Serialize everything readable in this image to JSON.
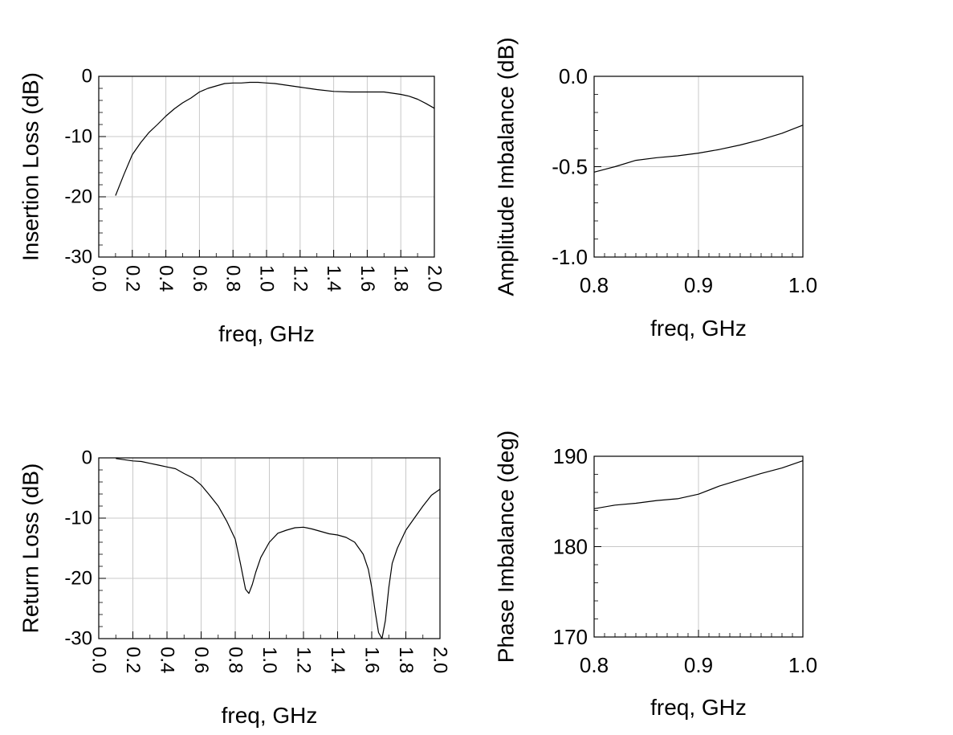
{
  "chart_data": [
    {
      "type": "line",
      "xlabel": "freq, GHz",
      "ylabel": "Insertion Loss (dB)",
      "xlim": [
        0.0,
        2.0
      ],
      "ylim": [
        -30,
        0
      ],
      "xticks": [
        "0.0",
        "0.2",
        "0.4",
        "0.6",
        "0.8",
        "1.0",
        "1.2",
        "1.4",
        "1.6",
        "1.8",
        "2.0"
      ],
      "yticks": [
        "0",
        "-10",
        "-20",
        "-30"
      ],
      "grid": true,
      "series": [
        {
          "x": [
            0.1,
            0.15,
            0.2,
            0.25,
            0.3,
            0.35,
            0.4,
            0.45,
            0.5,
            0.55,
            0.6,
            0.65,
            0.7,
            0.75,
            0.8,
            0.85,
            0.9,
            0.95,
            1.0,
            1.05,
            1.1,
            1.2,
            1.3,
            1.4,
            1.5,
            1.6,
            1.65,
            1.7,
            1.75,
            1.8,
            1.85,
            1.9,
            1.95,
            2.0
          ],
          "y": [
            -19.8,
            -16.3,
            -13.0,
            -11.0,
            -9.3,
            -8.0,
            -6.6,
            -5.4,
            -4.4,
            -3.6,
            -2.6,
            -2.0,
            -1.6,
            -1.2,
            -1.1,
            -1.1,
            -1.0,
            -1.0,
            -1.1,
            -1.2,
            -1.4,
            -1.8,
            -2.2,
            -2.5,
            -2.6,
            -2.6,
            -2.6,
            -2.6,
            -2.8,
            -3.0,
            -3.3,
            -3.8,
            -4.5,
            -5.3
          ]
        }
      ]
    },
    {
      "type": "line",
      "xlabel": "freq, GHz",
      "ylabel": "Amplitude Imbalance (dB)",
      "xlim": [
        0.8,
        1.0
      ],
      "ylim": [
        -1.0,
        0.0
      ],
      "xticks": [
        "0.8",
        "0.9",
        "1.0"
      ],
      "yticks": [
        "0.0",
        "-0.5",
        "-1.0"
      ],
      "grid": true,
      "series": [
        {
          "x": [
            0.8,
            0.82,
            0.84,
            0.86,
            0.88,
            0.9,
            0.92,
            0.94,
            0.96,
            0.98,
            1.0
          ],
          "y": [
            -0.53,
            -0.5,
            -0.465,
            -0.45,
            -0.44,
            -0.425,
            -0.405,
            -0.38,
            -0.35,
            -0.315,
            -0.27
          ]
        }
      ]
    },
    {
      "type": "line",
      "xlabel": "freq, GHz",
      "ylabel": "Return Loss (dB)",
      "xlim": [
        0.0,
        2.0
      ],
      "ylim": [
        -30,
        0
      ],
      "xticks": [
        "0.0",
        "0.2",
        "0.4",
        "0.6",
        "0.8",
        "1.0",
        "1.2",
        "1.4",
        "1.6",
        "1.8",
        "2.0"
      ],
      "yticks": [
        "0",
        "-10",
        "-20",
        "-30"
      ],
      "grid": true,
      "series": [
        {
          "x": [
            0.1,
            0.15,
            0.2,
            0.25,
            0.3,
            0.35,
            0.4,
            0.45,
            0.5,
            0.55,
            0.6,
            0.65,
            0.7,
            0.75,
            0.8,
            0.83,
            0.86,
            0.88,
            0.9,
            0.92,
            0.95,
            1.0,
            1.05,
            1.1,
            1.15,
            1.2,
            1.25,
            1.3,
            1.35,
            1.4,
            1.45,
            1.5,
            1.55,
            1.58,
            1.6,
            1.62,
            1.64,
            1.66,
            1.68,
            1.7,
            1.72,
            1.75,
            1.8,
            1.85,
            1.9,
            1.95,
            2.0
          ],
          "y": [
            -0.1,
            -0.3,
            -0.5,
            -0.6,
            -0.9,
            -1.2,
            -1.5,
            -1.8,
            -2.6,
            -3.3,
            -4.5,
            -6.2,
            -8.0,
            -10.5,
            -13.5,
            -17.5,
            -21.8,
            -22.5,
            -21.0,
            -19.0,
            -16.5,
            -14.0,
            -12.5,
            -12.0,
            -11.6,
            -11.5,
            -11.8,
            -12.2,
            -12.6,
            -12.8,
            -13.2,
            -14.0,
            -16.0,
            -18.5,
            -21.5,
            -25.5,
            -29.0,
            -30.0,
            -27.0,
            -21.5,
            -17.5,
            -15.0,
            -12.0,
            -10.0,
            -8.0,
            -6.2,
            -5.2
          ]
        }
      ]
    },
    {
      "type": "line",
      "xlabel": "freq, GHz",
      "ylabel": "Phase Imbalance (deg)",
      "xlim": [
        0.8,
        1.0
      ],
      "ylim": [
        170,
        190
      ],
      "xticks": [
        "0.8",
        "0.9",
        "1.0"
      ],
      "yticks": [
        "190",
        "180",
        "170"
      ],
      "grid": true,
      "series": [
        {
          "x": [
            0.8,
            0.82,
            0.84,
            0.86,
            0.88,
            0.9,
            0.92,
            0.94,
            0.96,
            0.98,
            1.0
          ],
          "y": [
            184.2,
            184.6,
            184.8,
            185.1,
            185.3,
            185.8,
            186.7,
            187.4,
            188.1,
            188.7,
            189.5
          ]
        }
      ]
    }
  ]
}
